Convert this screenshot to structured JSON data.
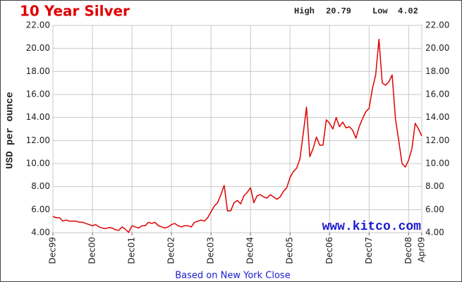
{
  "chart_data": {
    "type": "line",
    "title": "10 Year Silver",
    "high_label": "High",
    "high": 20.79,
    "low_label": "Low",
    "low": 4.02,
    "y_label": "USD per ounce",
    "watermark": "www.kitco.com",
    "footer": "Based on New York Close",
    "x": [
      "1999-12",
      "2000-01",
      "2000-02",
      "2000-03",
      "2000-04",
      "2000-05",
      "2000-06",
      "2000-07",
      "2000-08",
      "2000-09",
      "2000-10",
      "2000-11",
      "2000-12",
      "2001-01",
      "2001-02",
      "2001-03",
      "2001-04",
      "2001-05",
      "2001-06",
      "2001-07",
      "2001-08",
      "2001-09",
      "2001-10",
      "2001-11",
      "2001-12",
      "2002-01",
      "2002-02",
      "2002-03",
      "2002-04",
      "2002-05",
      "2002-06",
      "2002-07",
      "2002-08",
      "2002-09",
      "2002-10",
      "2002-11",
      "2002-12",
      "2003-01",
      "2003-02",
      "2003-03",
      "2003-04",
      "2003-05",
      "2003-06",
      "2003-07",
      "2003-08",
      "2003-09",
      "2003-10",
      "2003-11",
      "2003-12",
      "2004-01",
      "2004-02",
      "2004-03",
      "2004-04",
      "2004-05",
      "2004-06",
      "2004-07",
      "2004-08",
      "2004-09",
      "2004-10",
      "2004-11",
      "2004-12",
      "2005-01",
      "2005-02",
      "2005-03",
      "2005-04",
      "2005-05",
      "2005-06",
      "2005-07",
      "2005-08",
      "2005-09",
      "2005-10",
      "2005-11",
      "2005-12",
      "2006-01",
      "2006-02",
      "2006-03",
      "2006-04",
      "2006-05",
      "2006-06",
      "2006-07",
      "2006-08",
      "2006-09",
      "2006-10",
      "2006-11",
      "2006-12",
      "2007-01",
      "2007-02",
      "2007-03",
      "2007-04",
      "2007-05",
      "2007-06",
      "2007-07",
      "2007-08",
      "2007-09",
      "2007-10",
      "2007-11",
      "2007-12",
      "2008-01",
      "2008-02",
      "2008-03",
      "2008-04",
      "2008-05",
      "2008-06",
      "2008-07",
      "2008-08",
      "2008-09",
      "2008-10",
      "2008-11",
      "2008-12",
      "2009-01",
      "2009-02",
      "2009-03",
      "2009-04"
    ],
    "series": [
      {
        "color": "#e00000",
        "values": [
          5.4,
          5.3,
          5.3,
          5.0,
          5.1,
          5.0,
          5.0,
          5.0,
          4.9,
          4.9,
          4.8,
          4.7,
          4.6,
          4.7,
          4.5,
          4.4,
          4.35,
          4.45,
          4.4,
          4.25,
          4.2,
          4.5,
          4.3,
          4.02,
          4.6,
          4.5,
          4.4,
          4.6,
          4.6,
          4.9,
          4.8,
          4.9,
          4.6,
          4.5,
          4.4,
          4.5,
          4.7,
          4.8,
          4.6,
          4.5,
          4.6,
          4.6,
          4.5,
          4.9,
          5.0,
          5.1,
          5.0,
          5.3,
          5.8,
          6.3,
          6.6,
          7.3,
          8.1,
          5.9,
          5.9,
          6.6,
          6.8,
          6.5,
          7.2,
          7.5,
          7.9,
          6.6,
          7.2,
          7.3,
          7.1,
          7.0,
          7.3,
          7.1,
          6.9,
          7.1,
          7.6,
          7.9,
          8.8,
          9.3,
          9.6,
          10.4,
          12.6,
          14.9,
          10.6,
          11.3,
          12.3,
          11.6,
          11.6,
          13.8,
          13.5,
          13.0,
          14.0,
          13.2,
          13.6,
          13.1,
          13.2,
          12.9,
          12.2,
          13.2,
          13.9,
          14.5,
          14.8,
          16.5,
          17.7,
          20.79,
          17.0,
          16.8,
          17.1,
          17.7,
          13.9,
          12.0,
          10.0,
          9.7,
          10.3,
          11.3,
          13.5,
          13.0,
          12.4
        ]
      }
    ],
    "xlim": [
      "1999-12",
      "2009-04"
    ],
    "xticks": [
      {
        "value": "1999-12",
        "label": "Dec99"
      },
      {
        "value": "2000-12",
        "label": "Dec00"
      },
      {
        "value": "2001-12",
        "label": "Dec01"
      },
      {
        "value": "2002-12",
        "label": "Dec02"
      },
      {
        "value": "2003-12",
        "label": "Dec03"
      },
      {
        "value": "2004-12",
        "label": "Dec04"
      },
      {
        "value": "2005-12",
        "label": "Dec05"
      },
      {
        "value": "2006-12",
        "label": "Dec06"
      },
      {
        "value": "2007-12",
        "label": "Dec07"
      },
      {
        "value": "2008-12",
        "label": "Dec08"
      },
      {
        "value": "2009-04",
        "label": "Apr09"
      }
    ],
    "ylim": [
      4,
      22
    ],
    "yticks": [
      {
        "value": 4,
        "label": "4.00"
      },
      {
        "value": 6,
        "label": "6.00"
      },
      {
        "value": 8,
        "label": "8.00"
      },
      {
        "value": 10,
        "label": "10.00"
      },
      {
        "value": 12,
        "label": "12.00"
      },
      {
        "value": 14,
        "label": "14.00"
      },
      {
        "value": 16,
        "label": "16.00"
      },
      {
        "value": 18,
        "label": "18.00"
      },
      {
        "value": 20,
        "label": "20.00"
      },
      {
        "value": 22,
        "label": "22.00"
      }
    ],
    "grid": true
  }
}
